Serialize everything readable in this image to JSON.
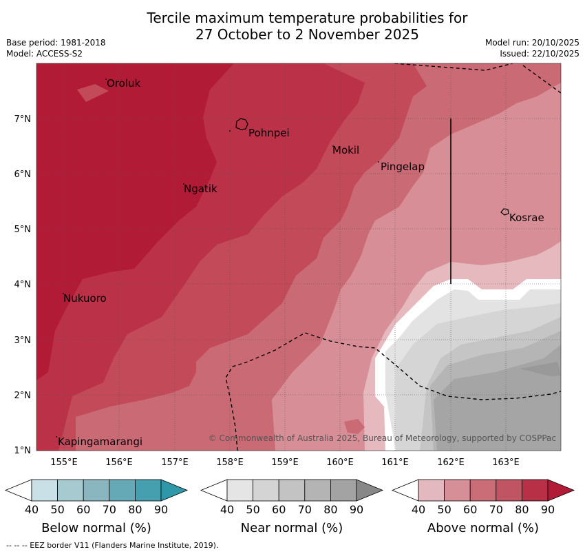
{
  "title_line1": "Tercile maximum temperature probabilities for",
  "title_line2": "27 October to 2 November 2025",
  "base_period": "Base period: 1981-2018",
  "model": "Model: ACCESS-S2",
  "model_run": "Model run: 20/10/2025",
  "issued": "Issued: 22/10/2025",
  "copyright": "© Commonwealth of Australia 2025, Bureau of Meteorology, supported by COSPPac",
  "footnote": "-- -- -- EEZ border V11 (Flanders Marine Institute, 2019).",
  "lon_ticks": [
    "155°E",
    "156°E",
    "157°E",
    "158°E",
    "159°E",
    "160°E",
    "161°E",
    "162°E",
    "163°E"
  ],
  "lat_ticks": [
    "1°N",
    "2°N",
    "3°N",
    "4°N",
    "5°N",
    "6°N",
    "7°N"
  ],
  "places": [
    {
      "name": "Oroluk"
    },
    {
      "name": "Pohnpei"
    },
    {
      "name": "Mokil"
    },
    {
      "name": "Pingelap"
    },
    {
      "name": "Ngatik"
    },
    {
      "name": "Kosrae"
    },
    {
      "name": "Nukuoro"
    },
    {
      "name": "Kapingamarangi"
    }
  ],
  "legends": {
    "below": {
      "title": "Below normal (%)",
      "labels": [
        "40",
        "50",
        "60",
        "70",
        "80",
        "90"
      ],
      "colors": [
        "#ffffff",
        "#c8e0e6",
        "#a7cad1",
        "#89b6bf",
        "#66a9b6",
        "#469faf",
        "#2f98a8"
      ]
    },
    "near": {
      "title": "Near normal (%)",
      "labels": [
        "40",
        "50",
        "60",
        "70",
        "80",
        "90"
      ],
      "colors": [
        "#ffffff",
        "#e5e5e5",
        "#d4d4d4",
        "#c3c3c3",
        "#b4b4b4",
        "#a3a3a3",
        "#888888"
      ]
    },
    "above": {
      "title": "Above normal (%)",
      "labels": [
        "40",
        "50",
        "60",
        "70",
        "80",
        "90"
      ],
      "colors": [
        "#ffffff",
        "#e3b9bf",
        "#d68e97",
        "#ca6d77",
        "#c05463",
        "#b73046",
        "#b21b36"
      ]
    }
  },
  "colors": {
    "above90": "#b21b36",
    "above80": "#bb3248",
    "above70": "#c24a59",
    "above60": "#ca6a74",
    "above50": "#d88e96",
    "above40": "#e5b9bd",
    "near40": "#e3e3e3",
    "near50": "#d5d5d5",
    "near60": "#c5c5c5",
    "near70": "#b5b5b5",
    "near80": "#a5a5a5",
    "near90": "#999999"
  }
}
